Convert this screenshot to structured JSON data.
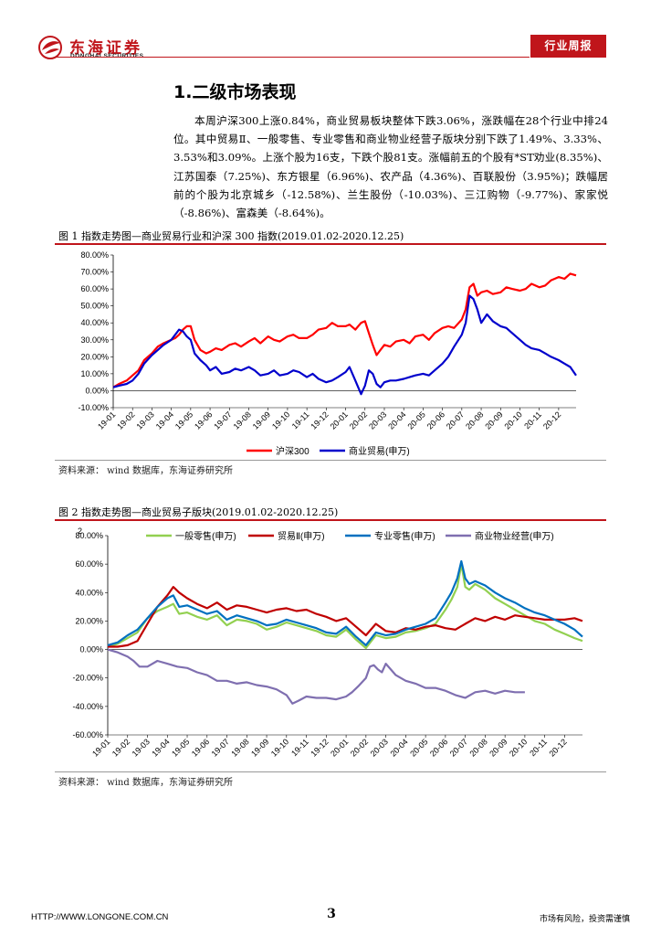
{
  "header": {
    "logo_cn": "东海证券",
    "logo_en": "DONGHAI SECURITIES",
    "tag": "行业周报"
  },
  "section": {
    "title": "1.二级市场表现",
    "paragraph": "本周沪深300上涨0.84%，商业贸易板块整体下跌3.06%，涨跌幅在28个行业中排24位。其中贸易Ⅱ、一般零售、专业零售和商业物业经营子版块分别下跌了1.49%、3.33%、3.53%和3.09%。上涨个股为16支，下跌个股81支。涨幅前五的个股有*ST劝业(8.35%)、江苏国泰（7.25%)、东方银星（6.96%)、农产品（4.36%)、百联股份（3.95%)；跌幅居前的个股为北京城乡（-12.58%)、兰生股份（-10.03%)、三江购物（-9.77%)、家家悦（-8.86%)、富森美（-8.64%)。"
  },
  "figure1": {
    "title": "图 1  指数走势图—商业贸易行业和沪深 300 指数(2019.01.02-2020.12.25)",
    "source": "资料来源：  wind 数据库，东海证券研究所"
  },
  "figure2": {
    "title": "图 2  指数走势图—商业贸易子版块(2019.01.02-2020.12.25)",
    "source": "资料来源：  wind 数据库，东海证券研究所"
  },
  "footer": {
    "url": "HTTP://WWW.LONGONE.COM.CN",
    "page": "3",
    "note": "市场有风险，投资需谨慎"
  },
  "chart_data": [
    {
      "type": "line",
      "title": "图 1  指数走势图—商业贸易行业和沪深 300 指数(2019.01.02-2020.12.25)",
      "categories": [
        "19-01",
        "19-02",
        "19-03",
        "19-04",
        "19-05",
        "19-06",
        "19-07",
        "19-08",
        "19-09",
        "19-10",
        "19-11",
        "19-12",
        "20-01",
        "20-02",
        "20-03",
        "20-04",
        "20-05",
        "20-06",
        "20-07",
        "20-08",
        "20-09",
        "20-10",
        "20-11",
        "20-12"
      ],
      "y_ticks": [
        "80.00%",
        "70.00%",
        "60.00%",
        "50.00%",
        "40.00%",
        "30.00%",
        "20.00%",
        "10.00%",
        "0.00%",
        "-10.00%"
      ],
      "ylim": [
        -10,
        80
      ],
      "legend_position": "bottom",
      "series": [
        {
          "name": "沪深300",
          "color": "#ff0000",
          "x": [
            0,
            0.3,
            0.7,
            1,
            1.3,
            1.6,
            2,
            2.3,
            2.6,
            3,
            3.2,
            3.4,
            3.6,
            3.8,
            4,
            4.2,
            4.5,
            4.8,
            5,
            5.3,
            5.6,
            6,
            6.3,
            6.6,
            7,
            7.3,
            7.6,
            8,
            8.3,
            8.6,
            9,
            9.3,
            9.6,
            10,
            10.3,
            10.6,
            11,
            11.3,
            11.6,
            12,
            12.2,
            12.5,
            12.8,
            13,
            13.2,
            13.4,
            13.6,
            13.8,
            14,
            14.3,
            14.6,
            15,
            15.3,
            15.6,
            16,
            16.3,
            16.6,
            17,
            17.3,
            17.6,
            18,
            18.2,
            18.4,
            18.6,
            18.8,
            19,
            19.3,
            19.6,
            20,
            20.3,
            20.6,
            21,
            21.3,
            21.6,
            22,
            22.3,
            22.6,
            23,
            23.3,
            23.6,
            23.9
          ],
          "y": [
            2,
            4,
            6,
            9,
            12,
            18,
            22,
            26,
            28,
            30,
            31,
            33,
            36,
            38,
            38,
            30,
            24,
            22,
            23,
            25,
            24,
            27,
            28,
            26,
            29,
            31,
            28,
            32,
            30,
            29,
            32,
            33,
            31,
            31,
            33,
            36,
            37,
            40,
            38,
            38,
            39,
            36,
            40,
            41,
            34,
            27,
            21,
            24,
            27,
            26,
            29,
            30,
            28,
            32,
            33,
            30,
            34,
            37,
            38,
            37,
            42,
            48,
            61,
            63,
            56,
            58,
            59,
            57,
            58,
            61,
            60,
            59,
            60,
            63,
            61,
            62,
            65,
            67,
            66,
            69,
            68
          ]
        },
        {
          "name": "商业贸易(申万)",
          "color": "#0000cc",
          "x": [
            0,
            0.3,
            0.7,
            1,
            1.3,
            1.6,
            2,
            2.3,
            2.6,
            3,
            3.2,
            3.4,
            3.6,
            3.8,
            4,
            4.2,
            4.5,
            4.8,
            5,
            5.3,
            5.6,
            6,
            6.3,
            6.6,
            7,
            7.3,
            7.6,
            8,
            8.3,
            8.6,
            9,
            9.3,
            9.6,
            10,
            10.3,
            10.6,
            11,
            11.3,
            11.6,
            12,
            12.2,
            12.5,
            12.8,
            13,
            13.2,
            13.4,
            13.6,
            13.8,
            14,
            14.3,
            14.6,
            15,
            15.3,
            15.6,
            16,
            16.3,
            16.6,
            17,
            17.3,
            17.6,
            18,
            18.2,
            18.4,
            18.6,
            18.8,
            19,
            19.3,
            19.6,
            20,
            20.3,
            20.6,
            21,
            21.3,
            21.6,
            22,
            22.3,
            22.6,
            23,
            23.3,
            23.6,
            23.9
          ],
          "y": [
            2,
            3,
            4,
            6,
            10,
            16,
            21,
            24,
            27,
            30,
            33,
            36,
            35,
            32,
            30,
            22,
            18,
            15,
            12,
            14,
            10,
            11,
            13,
            12,
            14,
            12,
            9,
            10,
            12,
            9,
            10,
            12,
            11,
            8,
            10,
            7,
            5,
            6,
            8,
            11,
            14,
            6,
            -2,
            3,
            12,
            10,
            4,
            2,
            5,
            6,
            6,
            7,
            8,
            9,
            10,
            9,
            12,
            16,
            20,
            26,
            33,
            40,
            56,
            54,
            48,
            40,
            45,
            41,
            38,
            37,
            34,
            30,
            27,
            25,
            24,
            22,
            20,
            18,
            16,
            14,
            9
          ]
        }
      ]
    },
    {
      "type": "line",
      "title": "图 2  指数走势图—商业贸易子版块(2019.01.02-2020.12.25)",
      "categories": [
        "19-01",
        "19-02",
        "19-03",
        "19-04",
        "19-05",
        "19-06",
        "19-07",
        "19-08",
        "19-09",
        "19-10",
        "19-11",
        "19-12",
        "20-01",
        "20-02",
        "20-03",
        "20-04",
        "20-05",
        "20-06",
        "20-07",
        "20-08",
        "20-09",
        "20-10",
        "20-11",
        "20-12"
      ],
      "y_ticks": [
        "80.00%",
        "60.00%",
        "40.00%",
        "20.00%",
        "0.00%",
        "-20.00%",
        "-40.00%",
        "-60.00%"
      ],
      "ylim": [
        -60,
        80
      ],
      "y_axis_tick": "2",
      "legend_position": "top",
      "series": [
        {
          "name": "一般零售(申万)",
          "color": "#92d050",
          "x": [
            0,
            0.5,
            1,
            1.5,
            2,
            2.5,
            3,
            3.3,
            3.6,
            4,
            4.5,
            5,
            5.5,
            6,
            6.5,
            7,
            7.5,
            8,
            8.5,
            9,
            9.5,
            10,
            10.5,
            11,
            11.5,
            12,
            12.5,
            13,
            13.5,
            14,
            14.5,
            15,
            15.5,
            16,
            16.5,
            17,
            17.3,
            17.6,
            17.8,
            18,
            18.2,
            18.5,
            19,
            19.5,
            20,
            20.5,
            21,
            21.5,
            22,
            22.5,
            23,
            23.5,
            23.9
          ],
          "y": [
            2,
            4,
            8,
            12,
            22,
            27,
            30,
            32,
            25,
            26,
            23,
            21,
            24,
            17,
            21,
            20,
            18,
            14,
            16,
            19,
            17,
            15,
            13,
            10,
            9,
            14,
            7,
            1,
            10,
            8,
            9,
            12,
            13,
            15,
            18,
            28,
            35,
            44,
            60,
            44,
            42,
            46,
            42,
            36,
            32,
            28,
            24,
            20,
            18,
            14,
            11,
            8,
            6
          ]
        },
        {
          "name": "贸易Ⅱ(申万)",
          "color": "#c00000",
          "x": [
            0,
            0.5,
            1,
            1.5,
            2,
            2.5,
            3,
            3.3,
            3.6,
            4,
            4.5,
            5,
            5.5,
            6,
            6.5,
            7,
            7.5,
            8,
            8.5,
            9,
            9.5,
            10,
            10.5,
            11,
            11.5,
            12,
            12.5,
            13,
            13.5,
            14,
            14.5,
            15,
            15.5,
            16,
            16.5,
            17,
            17.5,
            18,
            18.5,
            19,
            19.5,
            20,
            20.5,
            21,
            21.5,
            22,
            22.5,
            23,
            23.5,
            23.9
          ],
          "y": [
            2,
            2,
            3,
            6,
            18,
            30,
            38,
            44,
            40,
            36,
            32,
            29,
            33,
            28,
            31,
            30,
            28,
            26,
            28,
            29,
            27,
            28,
            25,
            23,
            20,
            22,
            16,
            10,
            18,
            13,
            12,
            15,
            14,
            16,
            17,
            15,
            14,
            18,
            22,
            20,
            23,
            21,
            24,
            23,
            22,
            21,
            21,
            21,
            22,
            20
          ]
        },
        {
          "name": "专业零售(申万)",
          "color": "#0070c0",
          "x": [
            0,
            0.5,
            1,
            1.5,
            2,
            2.5,
            3,
            3.3,
            3.6,
            4,
            4.5,
            5,
            5.5,
            6,
            6.5,
            7,
            7.5,
            8,
            8.5,
            9,
            9.5,
            10,
            10.5,
            11,
            11.5,
            12,
            12.5,
            13,
            13.5,
            14,
            14.5,
            15,
            15.5,
            16,
            16.5,
            17,
            17.3,
            17.6,
            17.8,
            18,
            18.2,
            18.5,
            19,
            19.5,
            20,
            20.5,
            21,
            21.5,
            22,
            22.5,
            23,
            23.5,
            23.9
          ],
          "y": [
            3,
            5,
            10,
            14,
            22,
            30,
            36,
            38,
            30,
            31,
            28,
            25,
            27,
            21,
            24,
            22,
            20,
            17,
            18,
            21,
            19,
            17,
            15,
            12,
            11,
            16,
            9,
            3,
            12,
            10,
            11,
            14,
            16,
            18,
            22,
            33,
            40,
            50,
            62,
            50,
            46,
            48,
            45,
            40,
            36,
            33,
            29,
            26,
            24,
            21,
            18,
            14,
            9
          ]
        },
        {
          "name": "商业物业经营(申万)",
          "color": "#7f6fb0",
          "x": [
            0,
            0.5,
            1,
            1.3,
            1.6,
            2,
            2.5,
            3,
            3.5,
            4,
            4.5,
            5,
            5.5,
            6,
            6.5,
            7,
            7.5,
            8,
            8.5,
            9,
            9.3,
            9.6,
            10,
            10.5,
            11,
            11.5,
            12,
            12.3,
            12.6,
            13,
            13.2,
            13.4,
            13.6,
            13.8,
            14,
            14.5,
            15,
            15.5,
            16,
            16.5,
            17,
            17.5,
            18,
            18.5,
            19,
            19.5,
            20,
            20.5,
            21
          ],
          "y": [
            0,
            -2,
            -5,
            -8,
            -12,
            -12,
            -8,
            -10,
            -12,
            -13,
            -16,
            -18,
            -22,
            -22,
            -24,
            -23,
            -25,
            -26,
            -28,
            -32,
            -38,
            -36,
            -33,
            -34,
            -34,
            -35,
            -33,
            -30,
            -26,
            -20,
            -12,
            -11,
            -14,
            -16,
            -10,
            -18,
            -22,
            -24,
            -27,
            -27,
            -29,
            -32,
            -34,
            -30,
            -29,
            -31,
            -29,
            -30,
            -30
          ]
        }
      ]
    }
  ]
}
